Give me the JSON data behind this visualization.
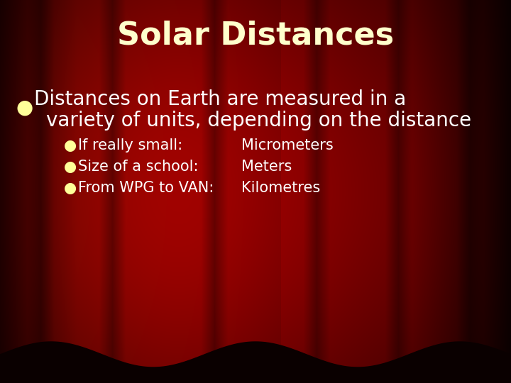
{
  "title": "Solar Distances",
  "title_color": "#FFFFCC",
  "title_fontsize": 32,
  "title_fontweight": "bold",
  "bullet1_color": "#FFFF99",
  "bullet1_symbol": "●",
  "bullet1_fontsize": 20,
  "sub_bullet_color": "#FFFFFF",
  "sub_bullet_symbol": "●",
  "sub_bullets": [
    [
      "If really small:",
      "Micrometers"
    ],
    [
      "Size of a school:",
      "Meters"
    ],
    [
      "From WPG to VAN:",
      "Kilometres"
    ]
  ],
  "sub_bullet_fontsize": 15,
  "figsize": [
    7.2,
    5.4
  ],
  "dpi": 100
}
